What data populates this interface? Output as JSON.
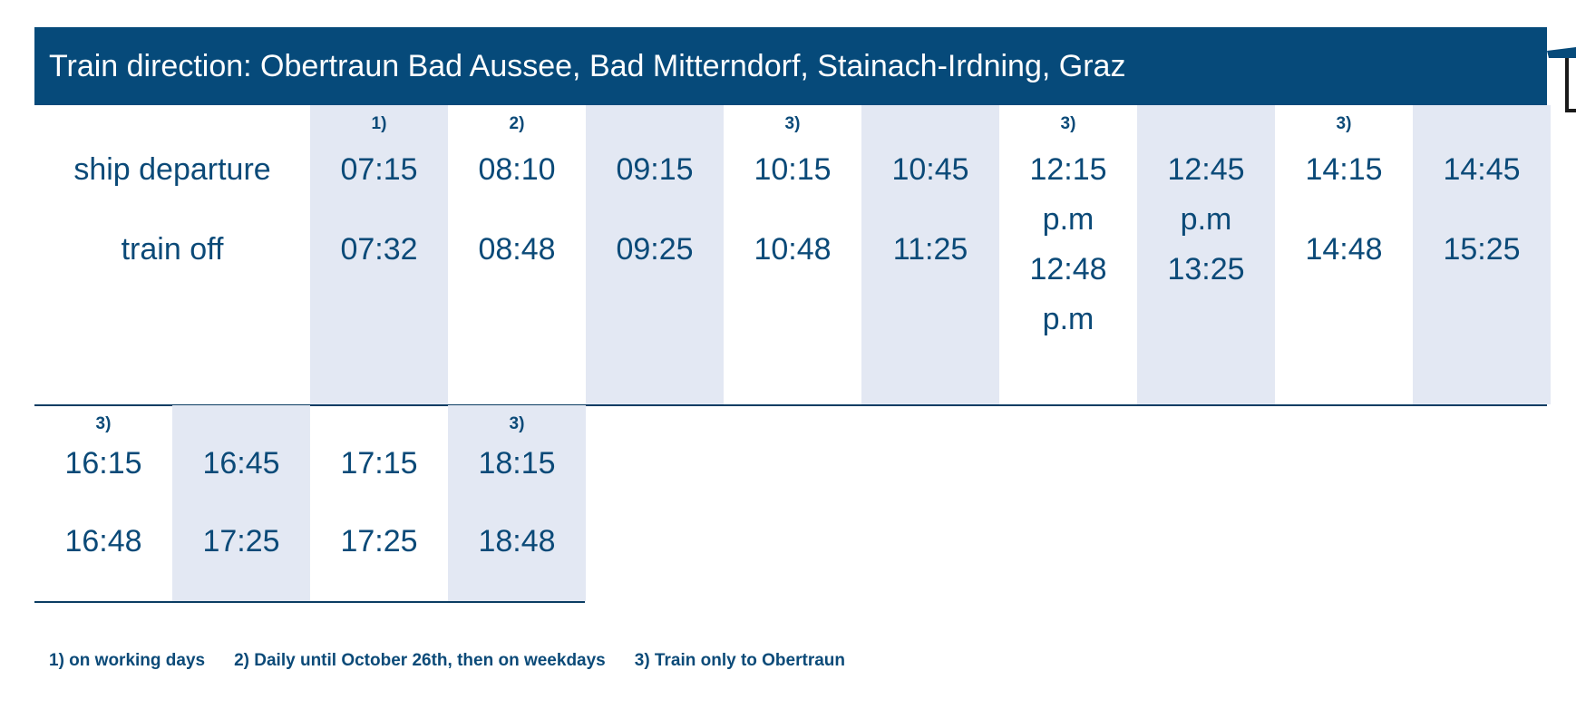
{
  "header": {
    "title": "Train direction: Obertraun Bad Aussee, Bad Mitterndorf, Stainach-Irdning, Graz"
  },
  "labels": {
    "ship": "ship departure",
    "train": "train off"
  },
  "row1": [
    {
      "note": "1)",
      "ship1": "07:15",
      "ship2": "",
      "train1": "07:32",
      "train2": ""
    },
    {
      "note": "2)",
      "ship1": "08:10",
      "ship2": "",
      "train1": "08:48",
      "train2": ""
    },
    {
      "note": "",
      "ship1": "09:15",
      "ship2": "",
      "train1": "09:25",
      "train2": ""
    },
    {
      "note": "3)",
      "ship1": "10:15",
      "ship2": "",
      "train1": "10:48",
      "train2": ""
    },
    {
      "note": "",
      "ship1": "10:45",
      "ship2": "",
      "train1": "11:25",
      "train2": ""
    },
    {
      "note": "3)",
      "ship1": "12:15",
      "ship2": "p.m",
      "train1": "12:48",
      "train2": "p.m"
    },
    {
      "note": "",
      "ship1": "12:45",
      "ship2": "p.m",
      "train1": "13:25",
      "train2": ""
    },
    {
      "note": "3)",
      "ship1": "14:15",
      "ship2": "",
      "train1": "14:48",
      "train2": ""
    },
    {
      "note": "",
      "ship1": "14:45",
      "ship2": "",
      "train1": "15:25",
      "train2": ""
    }
  ],
  "row2": [
    {
      "note": "3)",
      "ship": "16:15",
      "train": "16:48"
    },
    {
      "note": "",
      "ship": "16:45",
      "train": "17:25"
    },
    {
      "note": "",
      "ship": "17:15",
      "train": "17:25"
    },
    {
      "note": "3)",
      "ship": "18:15",
      "train": "18:48"
    }
  ],
  "footnotes": [
    "1) on working days",
    "2) Daily until October 26th, then on weekdays",
    "3) Train only to Obertraun"
  ],
  "colors": {
    "accent": "#064a7a",
    "shade": "#e3e8f3",
    "text": "#0b4a78"
  }
}
